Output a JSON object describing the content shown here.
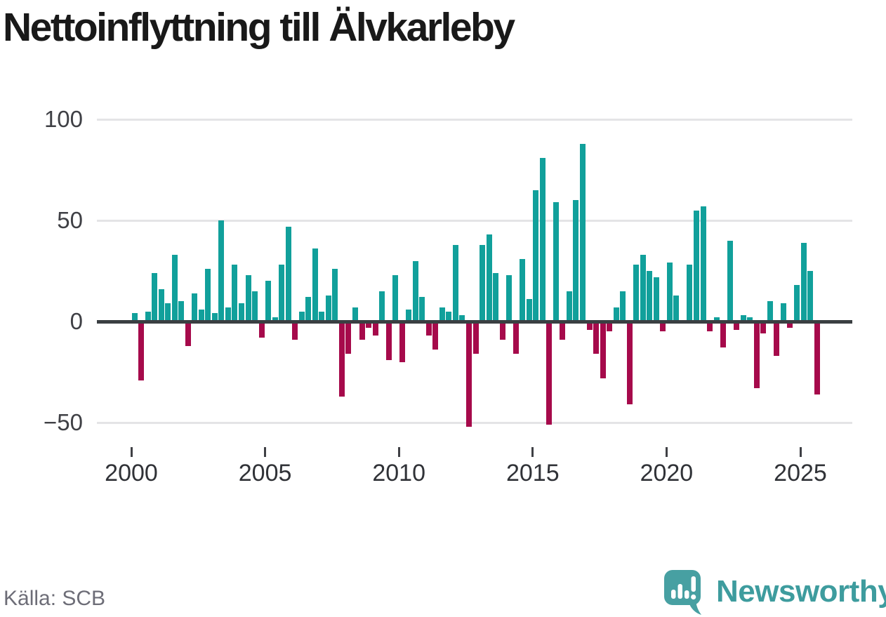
{
  "title": "Nettoinflyttning till Älvkarleby",
  "source": "Källa: SCB",
  "brand": {
    "name": "Newsworthy"
  },
  "axes": {
    "y_tick_labels": [
      "100",
      "50",
      "0",
      "−50"
    ],
    "y_tick_values": [
      100,
      50,
      0,
      -50
    ],
    "x_tick_labels": [
      "2000",
      "2005",
      "2010",
      "2015",
      "2020",
      "2025"
    ],
    "x_tick_years": [
      2000,
      2005,
      2010,
      2015,
      2020,
      2025
    ]
  },
  "chart_data": {
    "type": "bar",
    "title": "Nettoinflyttning till Älvkarleby",
    "frequency": "quarterly",
    "start": "2000 Q1",
    "end": "2025 Q3",
    "xlabel": "",
    "ylabel": "",
    "ylim": [
      -55,
      100
    ],
    "yticks": [
      100,
      50,
      0,
      -50
    ],
    "grid": true,
    "legend": "none",
    "colors": {
      "positive": "#11A09B",
      "negative": "#A60A4B"
    },
    "series": [
      {
        "year": 2000,
        "quarterly_values": [
          4,
          -29,
          5,
          24
        ]
      },
      {
        "year": 2001,
        "quarterly_values": [
          16,
          9,
          33,
          10
        ]
      },
      {
        "year": 2002,
        "quarterly_values": [
          -12,
          14,
          6,
          26
        ]
      },
      {
        "year": 2003,
        "quarterly_values": [
          4,
          50,
          7,
          28
        ]
      },
      {
        "year": 2004,
        "quarterly_values": [
          9,
          23,
          15,
          -8
        ]
      },
      {
        "year": 2005,
        "quarterly_values": [
          20,
          2,
          28,
          47
        ]
      },
      {
        "year": 2006,
        "quarterly_values": [
          -9,
          5,
          12,
          36
        ]
      },
      {
        "year": 2007,
        "quarterly_values": [
          5,
          13,
          26,
          -37
        ]
      },
      {
        "year": 2008,
        "quarterly_values": [
          -16,
          7,
          -9,
          -3
        ]
      },
      {
        "year": 2009,
        "quarterly_values": [
          -7,
          15,
          -19,
          23
        ]
      },
      {
        "year": 2010,
        "quarterly_values": [
          -20,
          6,
          30,
          12
        ]
      },
      {
        "year": 2011,
        "quarterly_values": [
          -7,
          -14,
          7,
          5
        ]
      },
      {
        "year": 2012,
        "quarterly_values": [
          38,
          3,
          -52,
          -16
        ]
      },
      {
        "year": 2013,
        "quarterly_values": [
          38,
          43,
          24,
          -9
        ]
      },
      {
        "year": 2014,
        "quarterly_values": [
          23,
          -16,
          31,
          11
        ]
      },
      {
        "year": 2015,
        "quarterly_values": [
          65,
          81,
          -51,
          59
        ]
      },
      {
        "year": 2016,
        "quarterly_values": [
          -9,
          15,
          60,
          88
        ]
      },
      {
        "year": 2017,
        "quarterly_values": [
          -4,
          -16,
          -28,
          -5
        ]
      },
      {
        "year": 2018,
        "quarterly_values": [
          7,
          15,
          -41,
          28
        ]
      },
      {
        "year": 2019,
        "quarterly_values": [
          33,
          25,
          22,
          -5
        ]
      },
      {
        "year": 2020,
        "quarterly_values": [
          29,
          13,
          0,
          28
        ]
      },
      {
        "year": 2021,
        "quarterly_values": [
          55,
          57,
          -5,
          2
        ]
      },
      {
        "year": 2022,
        "quarterly_values": [
          -13,
          40,
          -4,
          3
        ]
      },
      {
        "year": 2023,
        "quarterly_values": [
          2,
          -33,
          -6,
          10
        ]
      },
      {
        "year": 2024,
        "quarterly_values": [
          -17,
          9,
          -3,
          18
        ]
      },
      {
        "year": 2025,
        "quarterly_values": [
          39,
          25,
          -36
        ]
      }
    ]
  }
}
